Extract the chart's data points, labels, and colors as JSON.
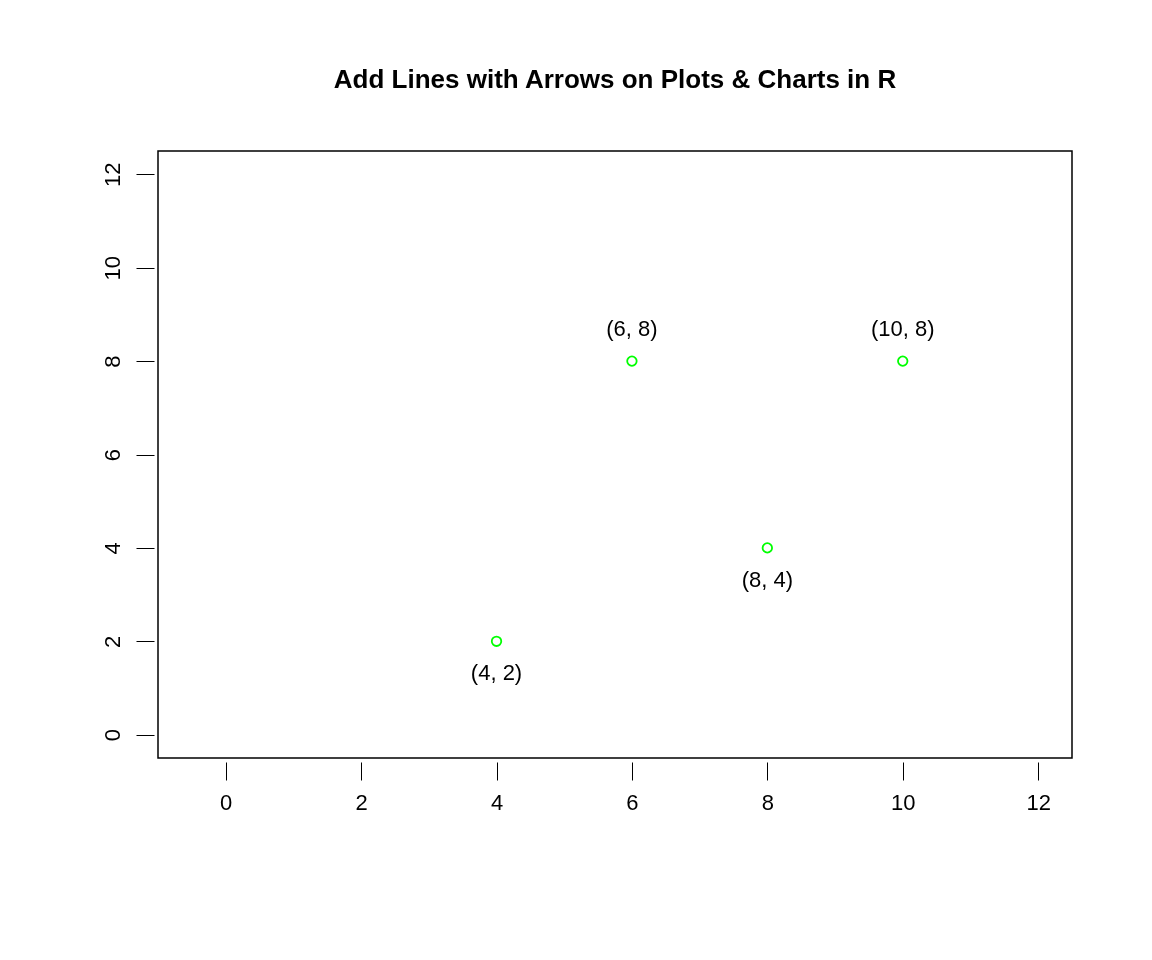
{
  "chart_data": {
    "type": "scatter",
    "title": "Add Lines with Arrows on Plots & Charts in R",
    "x": [
      4,
      6,
      8,
      10
    ],
    "series": [
      {
        "color": "#00ff00",
        "values": [
          2,
          8,
          4,
          8
        ],
        "value_labels": [
          "(4, 2)",
          "(6, 8)",
          "(8, 4)",
          "(10, 8)"
        ]
      }
    ],
    "xlim": [
      -1,
      12.5
    ],
    "ylim": [
      -0.5,
      12.5
    ],
    "xticks": [
      0,
      2,
      4,
      6,
      8,
      10,
      12
    ],
    "yticks": [
      0,
      2,
      4,
      6,
      8,
      10,
      12
    ],
    "grid": false,
    "marker": "circle",
    "legend": false
  }
}
